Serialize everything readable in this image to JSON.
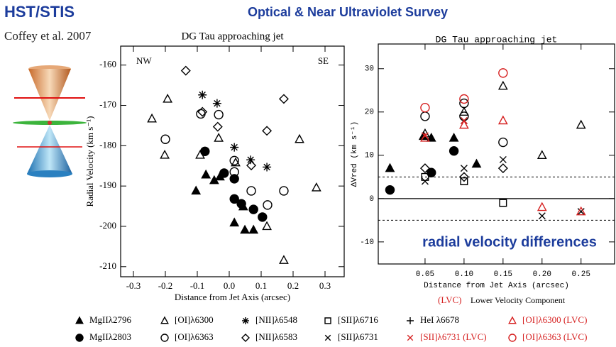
{
  "header": {
    "title": "HST/STIS",
    "subtitle": "Optical & Near Ultraviolet Survey",
    "citation": "Coffey et al. 2007"
  },
  "chart_data": [
    {
      "type": "scatter",
      "title": "DG Tau approaching jet",
      "x_label": "Distance from Jet Axis (arcsec)",
      "y_label": "Radial Velocity (km s⁻¹)",
      "annotations": [
        "NW",
        "SE"
      ],
      "xlim": [
        -0.34,
        0.36
      ],
      "ylim": [
        -212.5,
        -155.3
      ],
      "xticks": [
        -0.3,
        -0.2,
        -0.1,
        {
          "value": 0,
          "label": "0.0"
        },
        0.1,
        0.2,
        0.3
      ],
      "yticks": [
        -160,
        -170,
        -180,
        -190,
        -200,
        -210
      ],
      "series": [
        {
          "marker": "triangle-filled",
          "color": "#000000",
          "x": [
            -0.104,
            -0.073,
            -0.047,
            -0.029,
            0.016,
            0.049,
            0.076,
            0.044
          ],
          "y": [
            -191.2,
            -187.2,
            -188.6,
            -187.7,
            -199.1,
            -200.9,
            -200.9,
            -195.1
          ]
        },
        {
          "marker": "circle-filled",
          "color": "#000000",
          "x": [
            -0.076,
            -0.016,
            0.016,
            0.016,
            0.038,
            0.076,
            0.104
          ],
          "y": [
            -181.4,
            -186.8,
            -188.2,
            -193.2,
            -194.4,
            -195.8,
            -197.7
          ]
        },
        {
          "marker": "triangle",
          "color": "#000000",
          "x": [
            -0.242,
            -0.193,
            -0.202,
            -0.091,
            -0.033,
            0.02,
            0.118,
            0.22,
            0.273,
            0.171
          ],
          "y": [
            -173.3,
            -168.4,
            -182.3,
            -182.3,
            -178.1,
            -184.2,
            -200,
            -178.4,
            -190.4,
            -208.4
          ]
        },
        {
          "marker": "circle",
          "color": "#000000",
          "x": [
            -0.2,
            -0.089,
            -0.033,
            0.016,
            0.016,
            0.069,
            0.12,
            0.171
          ],
          "y": [
            -178.4,
            -172.1,
            -172.3,
            -183.7,
            -186.5,
            -191.2,
            -194.7,
            -191.2
          ]
        },
        {
          "marker": "asterisk",
          "color": "#000000",
          "x": [
            -0.084,
            -0.038,
            0.016,
            0.067,
            0.118
          ],
          "y": [
            -167.4,
            -169.5,
            -180.4,
            -183.5,
            -185.3
          ]
        },
        {
          "marker": "diamond",
          "color": "#000000",
          "x": [
            -0.136,
            -0.084,
            -0.036,
            0.069,
            0.118,
            0.171
          ],
          "y": [
            -161.4,
            -171.6,
            -175.3,
            -184.9,
            -176.3,
            -168.4
          ]
        }
      ]
    },
    {
      "type": "scatter",
      "title": "DG Tau approaching jet",
      "x_label": "Distance from Jet Axis (arcsec)",
      "y_label": "ΔVred (km s⁻¹)",
      "annotations": [
        "radial velocity differences"
      ],
      "reference_lines": [
        5,
        0,
        -5
      ],
      "xlim": [
        -0.01,
        0.293
      ],
      "ylim": [
        -15.1,
        35.7
      ],
      "xticks": [
        0.05,
        {
          "value": 0.1,
          "label": "0.10"
        },
        0.15,
        {
          "value": 0.2,
          "label": "0.20"
        },
        0.25
      ],
      "yticks": [
        30,
        20,
        10,
        0,
        -10
      ],
      "series": [
        {
          "marker": "triangle-filled",
          "color": "#000000",
          "x": [
            0.005,
            0.048,
            0.058,
            0.087,
            0.116
          ],
          "y": [
            7,
            14.4,
            14,
            14,
            8
          ]
        },
        {
          "marker": "circle-filled",
          "color": "#000000",
          "x": [
            0.005,
            0.058,
            0.087
          ],
          "y": [
            2,
            6,
            11
          ]
        },
        {
          "marker": "triangle",
          "color": "#000000",
          "x": [
            0.05,
            0.1,
            0.15,
            0.2,
            0.25
          ],
          "y": [
            15,
            20,
            26,
            10,
            17
          ]
        },
        {
          "marker": "circle",
          "color": "#000000",
          "x": [
            0.05,
            0.1,
            0.1,
            0.15
          ],
          "y": [
            19,
            22,
            19,
            13
          ]
        },
        {
          "marker": "cross",
          "color": "#000000",
          "x": [
            0.05,
            0.1,
            0.1,
            0.15,
            0.2,
            0.25
          ],
          "y": [
            4,
            7,
            18,
            9,
            -4,
            -3
          ]
        },
        {
          "marker": "square",
          "color": "#000000",
          "x": [
            0.05,
            0.1,
            0.15
          ],
          "y": [
            5,
            4,
            -1
          ]
        },
        {
          "marker": "diamond",
          "color": "#000000",
          "x": [
            0.05,
            0.1,
            0.15
          ],
          "y": [
            7,
            5,
            7
          ]
        },
        {
          "marker": "triangle",
          "color": "#d62020",
          "x": [
            0.05,
            0.1,
            0.15,
            0.2,
            0.25
          ],
          "y": [
            14,
            17,
            18,
            -2,
            -3
          ]
        },
        {
          "marker": "circle",
          "color": "#d62020",
          "x": [
            0.05,
            0.1,
            0.15
          ],
          "y": [
            21,
            23,
            29
          ]
        },
        {
          "marker": "cross",
          "color": "#d62020",
          "x": [
            0.05,
            0.1
          ],
          "y": [
            14.5,
            18
          ]
        }
      ]
    }
  ],
  "legend": [
    {
      "name": "MgIIλ2796",
      "marker": "triangle-filled",
      "color": "#000000"
    },
    {
      "name": "[OI]λ6300",
      "marker": "triangle",
      "color": "#000000"
    },
    {
      "name": "[NII]λ6548",
      "marker": "asterisk",
      "color": "#000000"
    },
    {
      "name": "[SII]λ6716",
      "marker": "square",
      "color": "#000000"
    },
    {
      "name": "HeI λ6678",
      "marker": "plus",
      "color": "#000000"
    },
    {
      "name": "[OI]λ6300 (LVC)",
      "marker": "triangle",
      "color": "#d62020"
    },
    {
      "name": "MgIIλ2803",
      "marker": "circle-filled",
      "color": "#000000"
    },
    {
      "name": "[OI]λ6363",
      "marker": "circle",
      "color": "#000000"
    },
    {
      "name": "[NII]λ6583",
      "marker": "diamond",
      "color": "#000000"
    },
    {
      "name": "[SII]λ6731",
      "marker": "cross",
      "color": "#000000"
    },
    {
      "name": "[SII]λ6731 (LVC)",
      "marker": "cross",
      "color": "#d62020"
    },
    {
      "name": "[OI]λ6363 (LVC)",
      "marker": "circle",
      "color": "#d62020"
    }
  ],
  "footnote": {
    "tag": "(LVC)",
    "text": "Lower Velocity Component"
  }
}
